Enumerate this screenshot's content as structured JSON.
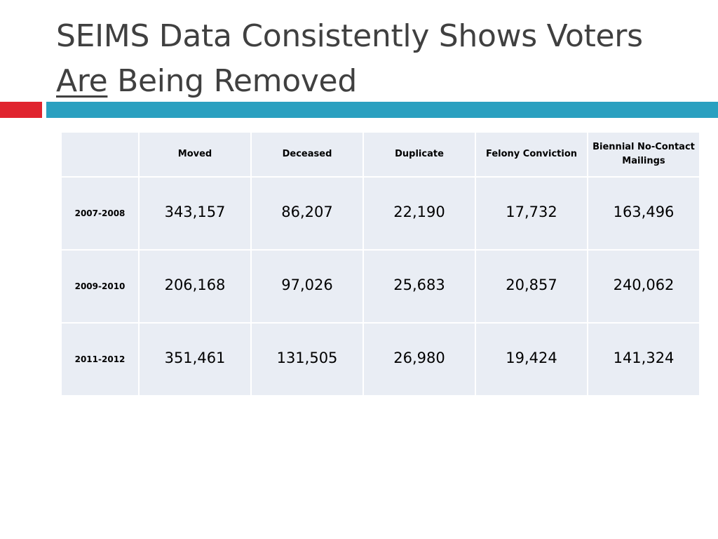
{
  "title": {
    "line1": "SEIMS Data Consistently Shows Voters",
    "underlined": "Are",
    "rest": " Being Removed"
  },
  "colors": {
    "accent_red": "#e0242e",
    "accent_blue": "#2aa0c0",
    "cell_fill": "#e9edf4"
  },
  "table": {
    "columns": [
      "",
      "Moved",
      "Deceased",
      "Duplicate",
      "Felony Conviction",
      "Biennial No-Contact Mailings"
    ],
    "rows": [
      {
        "label": "2007-2008",
        "values": [
          "343,157",
          "86,207",
          "22,190",
          "17,732",
          "163,496"
        ]
      },
      {
        "label": "2009-2010",
        "values": [
          "206,168",
          "97,026",
          "25,683",
          "20,857",
          "240,062"
        ]
      },
      {
        "label": "2011-2012",
        "values": [
          "351,461",
          "131,505",
          "26,980",
          "19,424",
          "141,324"
        ]
      }
    ]
  }
}
